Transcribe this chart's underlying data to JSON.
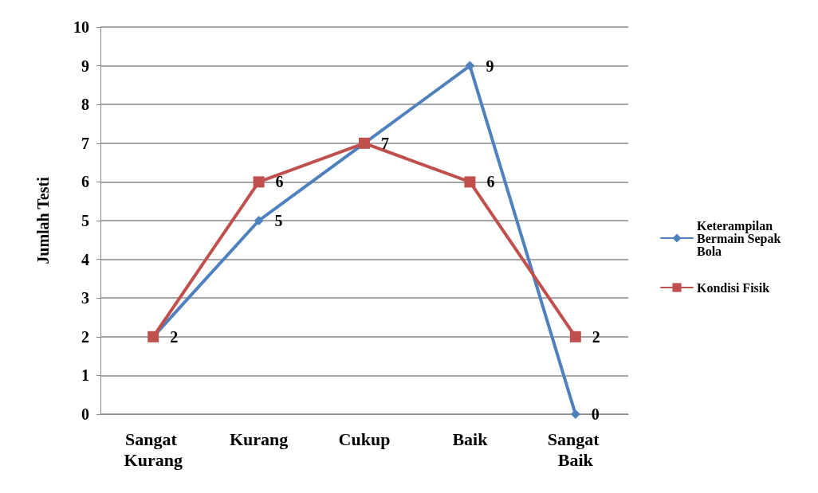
{
  "chart_data": {
    "type": "line",
    "ylabel": "Jumlah Testi",
    "categories": [
      "Sangat Kurang",
      "Kurang",
      "Cukup",
      "Baik",
      "Sangat Baik"
    ],
    "series": [
      {
        "name": "Keterampilan Bermain Sepak Bola",
        "color": "#4f81bd",
        "marker": "diamond",
        "values": [
          2,
          5,
          7,
          9,
          0
        ],
        "value_labels": [
          null,
          "5",
          null,
          "9",
          "0"
        ]
      },
      {
        "name": "Kondisi Fisik",
        "color": "#c0504d",
        "marker": "square",
        "values": [
          2,
          6,
          7,
          6,
          2
        ],
        "value_labels": [
          "2",
          "6",
          "7",
          "6",
          "2"
        ]
      }
    ],
    "ylim": [
      0,
      10
    ],
    "yticks": [
      0,
      1,
      2,
      3,
      4,
      5,
      6,
      7,
      8,
      9,
      10
    ],
    "grid": "y",
    "legend": "right",
    "line_style": "solid"
  }
}
